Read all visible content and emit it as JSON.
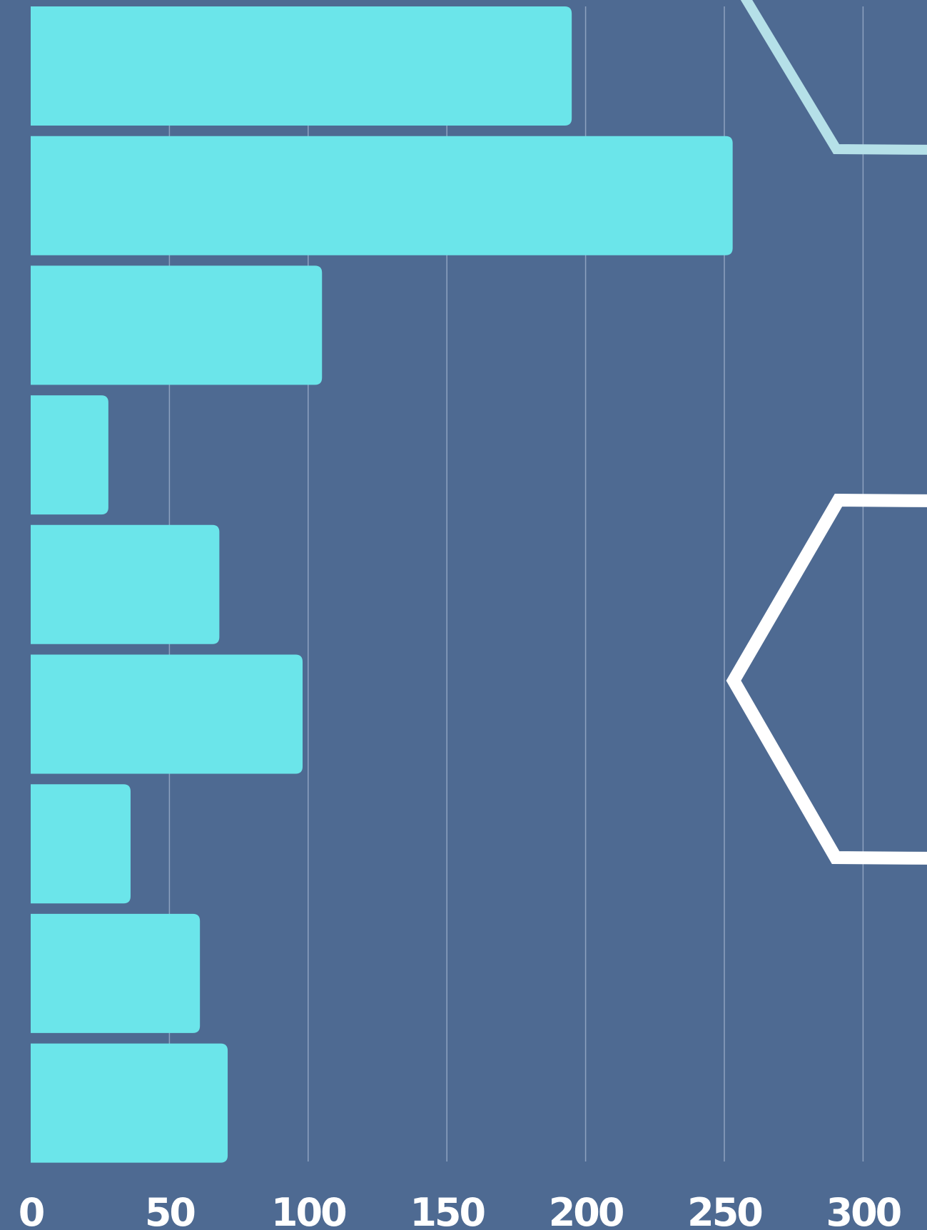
{
  "colors": {
    "background": "#4e6a92",
    "bar": "#6be5ea",
    "grid": "#8ea2c0",
    "tick_label": "#ffffff",
    "hexagon_light": "#b5e0e8",
    "hexagon_white": "#ffffff"
  },
  "chart_data": {
    "type": "bar",
    "orientation": "horizontal",
    "title": "",
    "xlabel": "",
    "ylabel": "",
    "xlim": [
      0,
      330
    ],
    "grid": true,
    "legend": "none",
    "x_ticks": [
      "0",
      "50",
      "100",
      "150",
      "200",
      "250",
      "300"
    ],
    "values": [
      195,
      253,
      105,
      28,
      68,
      98,
      36,
      61,
      71
    ]
  }
}
